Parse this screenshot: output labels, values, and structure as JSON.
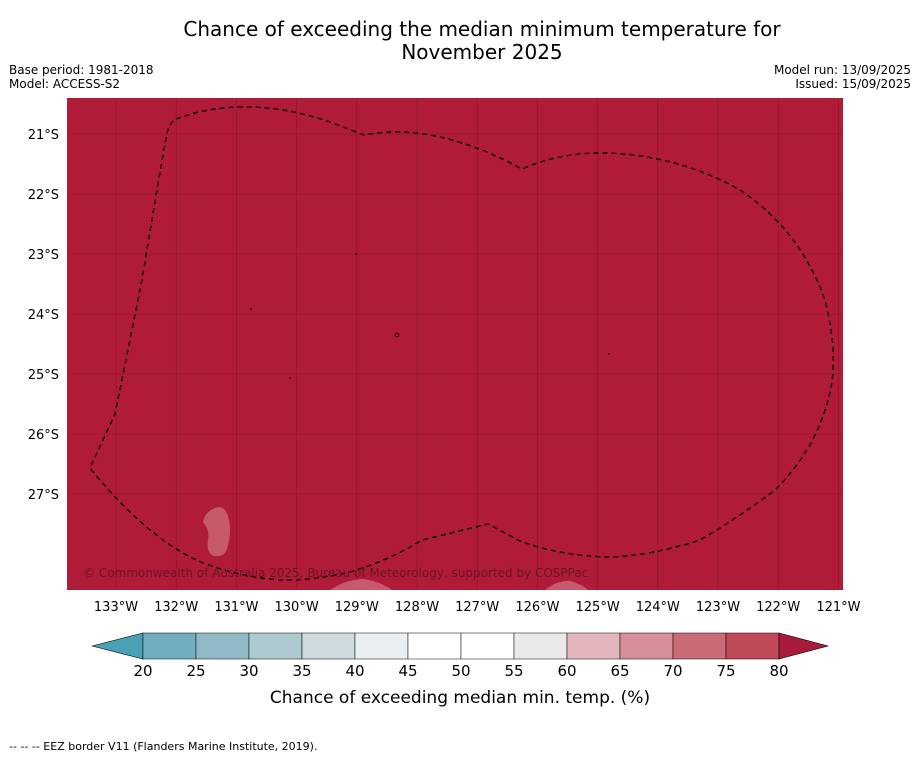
{
  "title_line1": "Chance of exceeding the median minimum temperature for",
  "title_line2": "November 2025",
  "meta_left": [
    "Base period: 1981-2018",
    "Model: ACCESS-S2"
  ],
  "meta_right": [
    "Model run: 13/09/2025",
    "Issued: 15/09/2025"
  ],
  "map": {
    "lat_labels": [
      "21°S",
      "22°S",
      "23°S",
      "24°S",
      "25°S",
      "26°S",
      "27°S"
    ],
    "lon_labels": [
      "133°W",
      "132°W",
      "131°W",
      "130°W",
      "129°W",
      "128°W",
      "127°W",
      "126°W",
      "125°W",
      "124°W",
      "123°W",
      "122°W",
      "121°W"
    ],
    "background_color": "#b01c38",
    "copyright": "© Commonwealth of Australia 2025, Bureau of Meteorology, supported by COSPPac"
  },
  "colorbar": {
    "ticks": [
      "20",
      "25",
      "30",
      "35",
      "40",
      "45",
      "50",
      "55",
      "60",
      "65",
      "70",
      "75",
      "80"
    ],
    "colors": [
      "#6fafbf",
      "#8fbac6",
      "#adcad0",
      "#cddbdf",
      "#eaf0f2",
      "#ffffff",
      "#ffffff",
      "#e9e9ea",
      "#e2b6bc",
      "#d68f98",
      "#c96b76",
      "#c04a58"
    ],
    "under_color": "#4aa0b4",
    "over_color": "#a81b3a",
    "label": "Chance of exceeding median min. temp. (%)"
  },
  "footer": "--  --  -- EEZ border V11 (Flanders Marine Institute, 2019)."
}
